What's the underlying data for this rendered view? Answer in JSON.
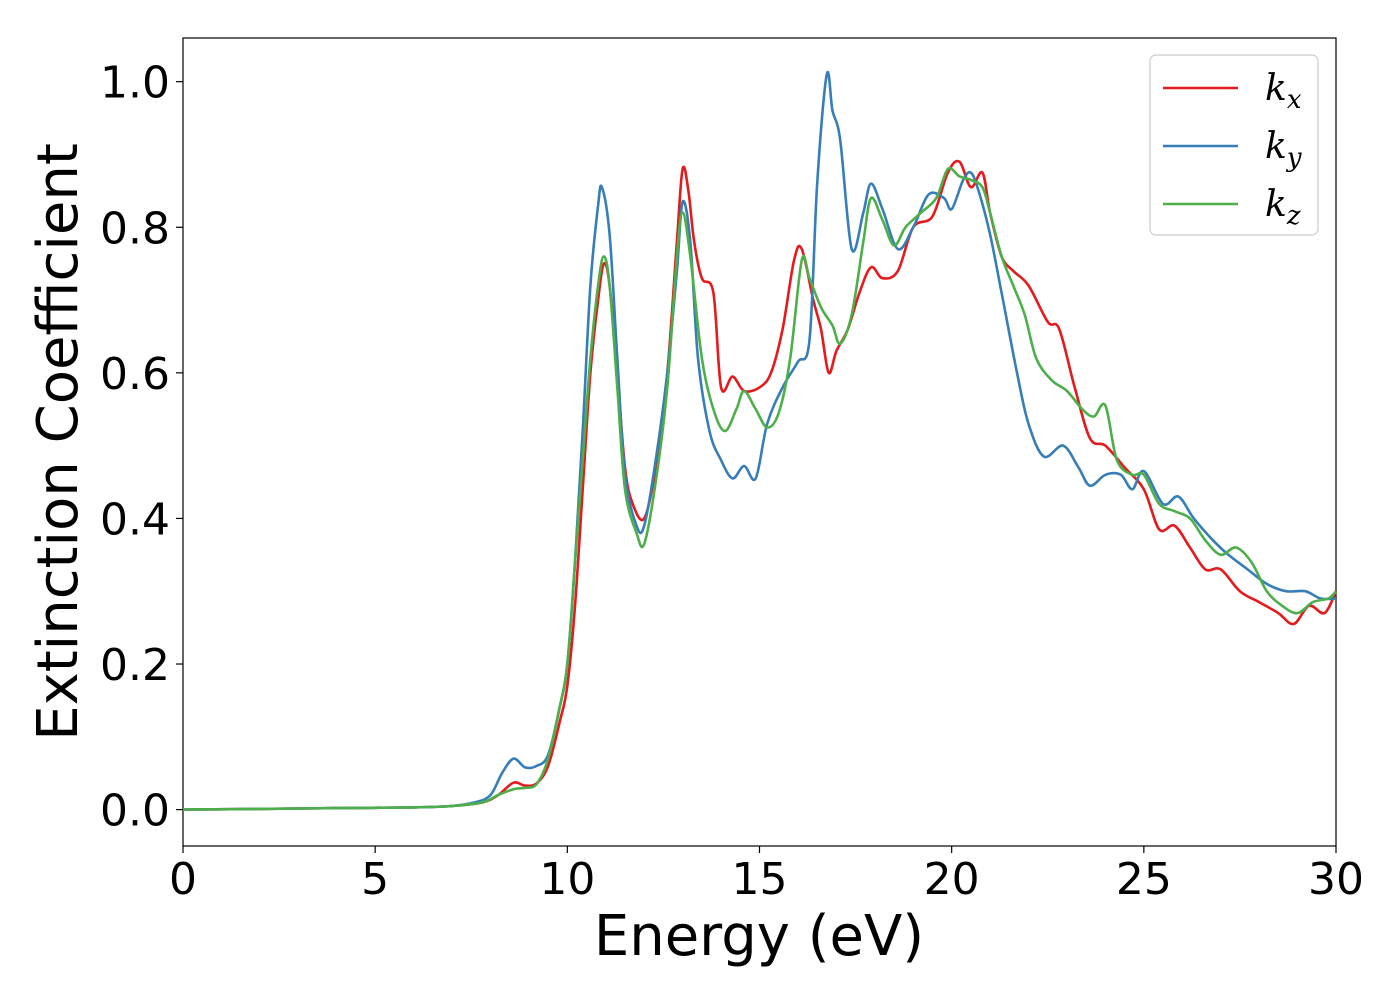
{
  "chart_data": {
    "type": "line",
    "title": "",
    "xlabel": "Energy (eV)",
    "ylabel": "Extinction Coefficient",
    "xlim": [
      0,
      30
    ],
    "ylim": [
      -0.05,
      1.06
    ],
    "xticks": [
      0,
      5,
      10,
      15,
      20,
      25,
      30
    ],
    "xtick_labels": [
      "0",
      "5",
      "10",
      "15",
      "20",
      "25",
      "30"
    ],
    "yticks": [
      0.0,
      0.2,
      0.4,
      0.6,
      0.8,
      1.0
    ],
    "ytick_labels": [
      "0.0",
      "0.2",
      "0.4",
      "0.6",
      "0.8",
      "1.0"
    ],
    "grid": false,
    "legend_position": "top-right",
    "series": [
      {
        "name": "k_x",
        "legend_base": "k",
        "legend_sub": "x",
        "color": "#e41a1c",
        "points": [
          [
            0,
            0.0
          ],
          [
            2,
            0.001
          ],
          [
            4,
            0.002
          ],
          [
            6,
            0.003
          ],
          [
            7,
            0.005
          ],
          [
            7.8,
            0.01
          ],
          [
            8.2,
            0.02
          ],
          [
            8.6,
            0.037
          ],
          [
            8.9,
            0.033
          ],
          [
            9.2,
            0.036
          ],
          [
            9.5,
            0.06
          ],
          [
            9.8,
            0.12
          ],
          [
            10.0,
            0.17
          ],
          [
            10.2,
            0.28
          ],
          [
            10.4,
            0.44
          ],
          [
            10.6,
            0.6
          ],
          [
            10.8,
            0.7
          ],
          [
            10.95,
            0.75
          ],
          [
            11.1,
            0.72
          ],
          [
            11.3,
            0.6
          ],
          [
            11.5,
            0.47
          ],
          [
            11.7,
            0.42
          ],
          [
            12.0,
            0.4
          ],
          [
            12.3,
            0.47
          ],
          [
            12.6,
            0.6
          ],
          [
            12.85,
            0.78
          ],
          [
            13.0,
            0.88
          ],
          [
            13.15,
            0.85
          ],
          [
            13.3,
            0.78
          ],
          [
            13.5,
            0.73
          ],
          [
            13.8,
            0.71
          ],
          [
            14.0,
            0.58
          ],
          [
            14.3,
            0.595
          ],
          [
            14.6,
            0.575
          ],
          [
            15.0,
            0.58
          ],
          [
            15.3,
            0.6
          ],
          [
            15.6,
            0.66
          ],
          [
            15.9,
            0.755
          ],
          [
            16.1,
            0.77
          ],
          [
            16.4,
            0.7
          ],
          [
            16.6,
            0.66
          ],
          [
            16.8,
            0.6
          ],
          [
            17.0,
            0.63
          ],
          [
            17.3,
            0.66
          ],
          [
            17.6,
            0.71
          ],
          [
            17.9,
            0.745
          ],
          [
            18.2,
            0.73
          ],
          [
            18.6,
            0.74
          ],
          [
            19.0,
            0.8
          ],
          [
            19.5,
            0.815
          ],
          [
            19.9,
            0.875
          ],
          [
            20.2,
            0.89
          ],
          [
            20.5,
            0.855
          ],
          [
            20.8,
            0.875
          ],
          [
            21.0,
            0.82
          ],
          [
            21.3,
            0.76
          ],
          [
            21.6,
            0.74
          ],
          [
            22.0,
            0.72
          ],
          [
            22.5,
            0.67
          ],
          [
            22.8,
            0.66
          ],
          [
            23.2,
            0.58
          ],
          [
            23.6,
            0.51
          ],
          [
            24.0,
            0.5
          ],
          [
            24.5,
            0.47
          ],
          [
            25.0,
            0.44
          ],
          [
            25.4,
            0.385
          ],
          [
            25.8,
            0.39
          ],
          [
            26.2,
            0.36
          ],
          [
            26.6,
            0.33
          ],
          [
            27.0,
            0.33
          ],
          [
            27.5,
            0.3
          ],
          [
            28.0,
            0.285
          ],
          [
            28.5,
            0.27
          ],
          [
            28.9,
            0.255
          ],
          [
            29.3,
            0.28
          ],
          [
            29.7,
            0.27
          ],
          [
            30,
            0.3
          ]
        ]
      },
      {
        "name": "k_y",
        "legend_base": "k",
        "legend_sub": "y",
        "color": "#377eb8",
        "points": [
          [
            0,
            0.0
          ],
          [
            2,
            0.001
          ],
          [
            4,
            0.002
          ],
          [
            6,
            0.003
          ],
          [
            7,
            0.005
          ],
          [
            7.6,
            0.01
          ],
          [
            8.0,
            0.02
          ],
          [
            8.3,
            0.05
          ],
          [
            8.6,
            0.07
          ],
          [
            8.9,
            0.058
          ],
          [
            9.2,
            0.06
          ],
          [
            9.5,
            0.075
          ],
          [
            9.8,
            0.14
          ],
          [
            10.0,
            0.2
          ],
          [
            10.2,
            0.34
          ],
          [
            10.4,
            0.52
          ],
          [
            10.6,
            0.72
          ],
          [
            10.8,
            0.83
          ],
          [
            10.9,
            0.855
          ],
          [
            11.1,
            0.79
          ],
          [
            11.3,
            0.62
          ],
          [
            11.5,
            0.46
          ],
          [
            11.8,
            0.39
          ],
          [
            12.0,
            0.39
          ],
          [
            12.3,
            0.48
          ],
          [
            12.6,
            0.6
          ],
          [
            12.85,
            0.74
          ],
          [
            13.0,
            0.835
          ],
          [
            13.2,
            0.78
          ],
          [
            13.4,
            0.62
          ],
          [
            13.7,
            0.52
          ],
          [
            14.0,
            0.48
          ],
          [
            14.3,
            0.455
          ],
          [
            14.6,
            0.472
          ],
          [
            14.9,
            0.455
          ],
          [
            15.2,
            0.53
          ],
          [
            15.6,
            0.58
          ],
          [
            16.0,
            0.615
          ],
          [
            16.3,
            0.645
          ],
          [
            16.5,
            0.86
          ],
          [
            16.75,
            1.01
          ],
          [
            16.9,
            0.96
          ],
          [
            17.1,
            0.92
          ],
          [
            17.4,
            0.77
          ],
          [
            17.7,
            0.82
          ],
          [
            17.9,
            0.86
          ],
          [
            18.2,
            0.825
          ],
          [
            18.6,
            0.77
          ],
          [
            19.0,
            0.8
          ],
          [
            19.4,
            0.845
          ],
          [
            19.8,
            0.84
          ],
          [
            20.0,
            0.825
          ],
          [
            20.3,
            0.865
          ],
          [
            20.5,
            0.875
          ],
          [
            20.7,
            0.85
          ],
          [
            21.0,
            0.79
          ],
          [
            21.3,
            0.71
          ],
          [
            21.7,
            0.6
          ],
          [
            22.0,
            0.53
          ],
          [
            22.4,
            0.485
          ],
          [
            22.9,
            0.5
          ],
          [
            23.3,
            0.47
          ],
          [
            23.6,
            0.445
          ],
          [
            24.0,
            0.46
          ],
          [
            24.4,
            0.46
          ],
          [
            24.7,
            0.44
          ],
          [
            25.0,
            0.465
          ],
          [
            25.5,
            0.42
          ],
          [
            25.9,
            0.43
          ],
          [
            26.3,
            0.4
          ],
          [
            26.8,
            0.37
          ],
          [
            27.2,
            0.35
          ],
          [
            27.7,
            0.33
          ],
          [
            28.2,
            0.31
          ],
          [
            28.7,
            0.3
          ],
          [
            29.2,
            0.3
          ],
          [
            29.6,
            0.29
          ],
          [
            30,
            0.29
          ]
        ]
      },
      {
        "name": "k_z",
        "legend_base": "k",
        "legend_sub": "z",
        "color": "#4daf4a",
        "points": [
          [
            0,
            0.0
          ],
          [
            2,
            0.001
          ],
          [
            4,
            0.002
          ],
          [
            6,
            0.003
          ],
          [
            7,
            0.005
          ],
          [
            7.8,
            0.01
          ],
          [
            8.2,
            0.02
          ],
          [
            8.6,
            0.028
          ],
          [
            8.9,
            0.03
          ],
          [
            9.2,
            0.035
          ],
          [
            9.5,
            0.07
          ],
          [
            9.8,
            0.14
          ],
          [
            10.0,
            0.2
          ],
          [
            10.2,
            0.34
          ],
          [
            10.4,
            0.48
          ],
          [
            10.6,
            0.62
          ],
          [
            10.8,
            0.72
          ],
          [
            10.95,
            0.76
          ],
          [
            11.1,
            0.72
          ],
          [
            11.3,
            0.58
          ],
          [
            11.5,
            0.44
          ],
          [
            11.8,
            0.38
          ],
          [
            12.0,
            0.365
          ],
          [
            12.3,
            0.45
          ],
          [
            12.6,
            0.58
          ],
          [
            12.85,
            0.76
          ],
          [
            13.0,
            0.82
          ],
          [
            13.2,
            0.76
          ],
          [
            13.5,
            0.62
          ],
          [
            13.8,
            0.55
          ],
          [
            14.1,
            0.52
          ],
          [
            14.4,
            0.55
          ],
          [
            14.6,
            0.575
          ],
          [
            14.9,
            0.55
          ],
          [
            15.2,
            0.525
          ],
          [
            15.5,
            0.545
          ],
          [
            15.8,
            0.62
          ],
          [
            16.1,
            0.755
          ],
          [
            16.3,
            0.73
          ],
          [
            16.6,
            0.69
          ],
          [
            16.9,
            0.665
          ],
          [
            17.1,
            0.64
          ],
          [
            17.4,
            0.68
          ],
          [
            17.7,
            0.78
          ],
          [
            17.9,
            0.84
          ],
          [
            18.2,
            0.81
          ],
          [
            18.5,
            0.775
          ],
          [
            18.8,
            0.8
          ],
          [
            19.2,
            0.82
          ],
          [
            19.6,
            0.84
          ],
          [
            19.9,
            0.88
          ],
          [
            20.2,
            0.87
          ],
          [
            20.5,
            0.865
          ],
          [
            20.8,
            0.855
          ],
          [
            21.0,
            0.82
          ],
          [
            21.3,
            0.76
          ],
          [
            21.6,
            0.72
          ],
          [
            21.9,
            0.68
          ],
          [
            22.2,
            0.62
          ],
          [
            22.6,
            0.59
          ],
          [
            23.0,
            0.575
          ],
          [
            23.4,
            0.55
          ],
          [
            23.7,
            0.54
          ],
          [
            24.0,
            0.555
          ],
          [
            24.3,
            0.48
          ],
          [
            24.7,
            0.46
          ],
          [
            25.0,
            0.46
          ],
          [
            25.4,
            0.42
          ],
          [
            25.8,
            0.41
          ],
          [
            26.2,
            0.4
          ],
          [
            26.6,
            0.37
          ],
          [
            27.0,
            0.35
          ],
          [
            27.4,
            0.36
          ],
          [
            27.8,
            0.34
          ],
          [
            28.2,
            0.3
          ],
          [
            28.6,
            0.28
          ],
          [
            29.0,
            0.27
          ],
          [
            29.4,
            0.285
          ],
          [
            29.8,
            0.29
          ],
          [
            30,
            0.3
          ]
        ]
      }
    ]
  }
}
